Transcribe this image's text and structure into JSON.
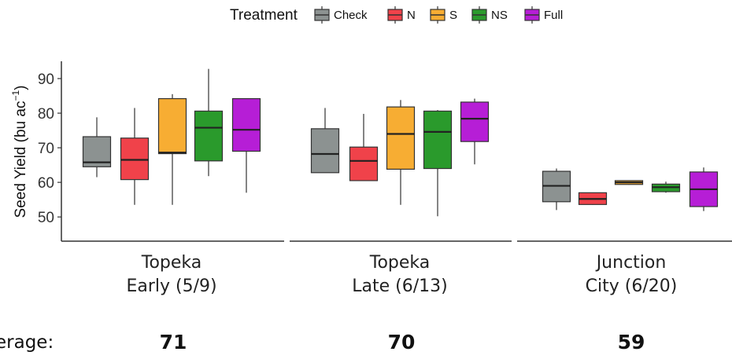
{
  "chart_data": {
    "type": "box",
    "legend": {
      "title": "Treatment",
      "position": "top",
      "entries": [
        {
          "label": "Check",
          "color": "#8c9291"
        },
        {
          "label": "N",
          "color": "#f0424a"
        },
        {
          "label": "S",
          "color": "#f7ad33"
        },
        {
          "label": "NS",
          "color": "#2a9a2c"
        },
        {
          "label": "Full",
          "color": "#b61ed6"
        }
      ]
    },
    "ylabel": "Seed Yield (bu ac",
    "ylabel_sup": "−1",
    "ylabel_close": ")",
    "ylim": [
      43,
      95
    ],
    "yticks": [
      "50",
      "60",
      "70",
      "80",
      "90"
    ],
    "grid": false,
    "panels": [
      {
        "label_line1": "Topeka",
        "label_line2": "Early (5/9)",
        "average": "71",
        "boxes": [
          {
            "treatment": "Check",
            "min": 61.5,
            "q1": 64.5,
            "median": 65.8,
            "q3": 73.2,
            "max": 78.8
          },
          {
            "treatment": "N",
            "min": 53.5,
            "q1": 60.8,
            "median": 66.5,
            "q3": 72.8,
            "max": 81.5
          },
          {
            "treatment": "S",
            "min": 53.5,
            "q1": 68.3,
            "median": 68.6,
            "q3": 84.2,
            "max": 85.5
          },
          {
            "treatment": "NS",
            "min": 61.8,
            "q1": 66.2,
            "median": 75.8,
            "q3": 80.6,
            "max": 92.8
          },
          {
            "treatment": "Full",
            "min": 57.0,
            "q1": 69.0,
            "median": 75.2,
            "q3": 84.2,
            "max": 84.2
          }
        ]
      },
      {
        "label_line1": "Topeka",
        "label_line2": "Late (6/13)",
        "average": "70",
        "boxes": [
          {
            "treatment": "Check",
            "min": 62.8,
            "q1": 62.8,
            "median": 68.2,
            "q3": 75.5,
            "max": 81.5
          },
          {
            "treatment": "N",
            "min": 60.5,
            "q1": 60.5,
            "median": 66.2,
            "q3": 70.2,
            "max": 79.8
          },
          {
            "treatment": "S",
            "min": 53.5,
            "q1": 63.8,
            "median": 74.0,
            "q3": 81.8,
            "max": 83.8
          },
          {
            "treatment": "NS",
            "min": 50.2,
            "q1": 64.0,
            "median": 74.6,
            "q3": 80.6,
            "max": 80.9
          },
          {
            "treatment": "Full",
            "min": 65.2,
            "q1": 71.8,
            "median": 78.4,
            "q3": 83.2,
            "max": 84.2
          }
        ]
      },
      {
        "label_line1": "Junction",
        "label_line2": "City (6/20)",
        "average": "59",
        "boxes": [
          {
            "treatment": "Check",
            "min": 52.0,
            "q1": 54.4,
            "median": 59.0,
            "q3": 63.2,
            "max": 64.0
          },
          {
            "treatment": "N",
            "min": 53.5,
            "q1": 53.6,
            "median": 55.2,
            "q3": 57.0,
            "max": 57.0
          },
          {
            "treatment": "S",
            "min": 59.3,
            "q1": 59.4,
            "median": 60.0,
            "q3": 60.5,
            "max": 60.6
          },
          {
            "treatment": "NS",
            "min": 57.0,
            "q1": 57.3,
            "median": 58.6,
            "q3": 59.5,
            "max": 60.2
          },
          {
            "treatment": "Full",
            "min": 51.7,
            "q1": 53.0,
            "median": 58.0,
            "q3": 63.0,
            "max": 64.3
          }
        ]
      }
    ],
    "average_label": "erage:"
  }
}
